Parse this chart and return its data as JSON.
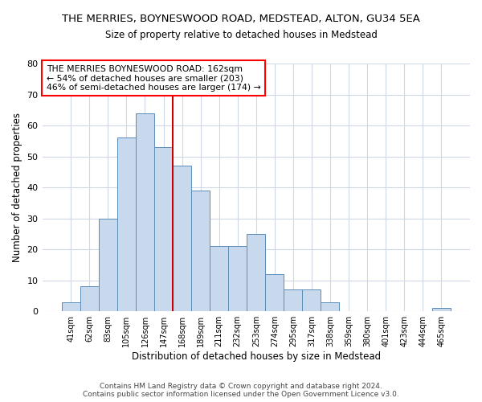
{
  "title": "THE MERRIES, BOYNESWOOD ROAD, MEDSTEAD, ALTON, GU34 5EA",
  "subtitle": "Size of property relative to detached houses in Medstead",
  "xlabel": "Distribution of detached houses by size in Medstead",
  "ylabel": "Number of detached properties",
  "bar_color": "#c9d9ed",
  "bar_edge_color": "#5b8db8",
  "bar_categories": [
    "41sqm",
    "62sqm",
    "83sqm",
    "105sqm",
    "126sqm",
    "147sqm",
    "168sqm",
    "189sqm",
    "211sqm",
    "232sqm",
    "253sqm",
    "274sqm",
    "295sqm",
    "317sqm",
    "338sqm",
    "359sqm",
    "380sqm",
    "401sqm",
    "423sqm",
    "444sqm",
    "465sqm"
  ],
  "bar_values": [
    3,
    8,
    30,
    56,
    64,
    53,
    47,
    39,
    21,
    21,
    25,
    12,
    7,
    7,
    3,
    0,
    0,
    0,
    0,
    0,
    1
  ],
  "red_line_x": 5.5,
  "red_line_color": "#cc0000",
  "ylim": [
    0,
    80
  ],
  "yticks": [
    0,
    10,
    20,
    30,
    40,
    50,
    60,
    70,
    80
  ],
  "annotation_box_text": "THE MERRIES BOYNESWOOD ROAD: 162sqm\n← 54% of detached houses are smaller (203)\n46% of semi-detached houses are larger (174) →",
  "footer_text": "Contains HM Land Registry data © Crown copyright and database right 2024.\nContains public sector information licensed under the Open Government Licence v3.0.",
  "background_color": "#ffffff",
  "grid_color": "#d0d8e8"
}
